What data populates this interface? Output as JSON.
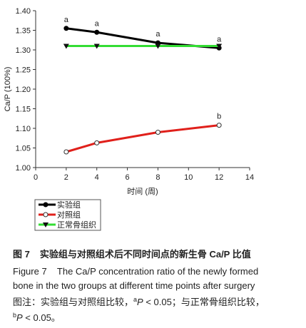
{
  "chart_data": {
    "type": "line",
    "x_label": "时间 (周)",
    "y_label": "Ca/P (100%)",
    "x": [
      2,
      4,
      8,
      12
    ],
    "series": [
      {
        "name": "实验组",
        "color": "#000000",
        "marker": "circle",
        "values": [
          1.355,
          1.345,
          1.318,
          1.305
        ],
        "annotations": [
          "a",
          "a",
          "a",
          "a"
        ]
      },
      {
        "name": "对照组",
        "color": "#e0201b",
        "marker": "open-circle",
        "values": [
          1.04,
          1.063,
          1.09,
          1.108
        ],
        "annotations": [
          null,
          null,
          null,
          "b"
        ]
      },
      {
        "name": "正常骨组织",
        "color": "#33dd33",
        "marker": "triangle",
        "values": [
          1.31,
          1.31,
          1.31,
          1.31
        ]
      }
    ],
    "xlim": [
      0,
      14
    ],
    "xticks": [
      0,
      2,
      4,
      6,
      8,
      10,
      12,
      14
    ],
    "ylim": [
      1.0,
      1.4
    ],
    "yticks": [
      {
        "value": 1.0,
        "label": "1.00"
      },
      1.05,
      {
        "value": 1.1,
        "label": "1.10"
      },
      1.15,
      {
        "value": 1.2,
        "label": "1.20"
      },
      1.25,
      {
        "value": 1.3,
        "label": "1.30"
      },
      1.35,
      {
        "value": 1.4,
        "label": "1.40"
      }
    ],
    "grid": false,
    "legend": "bottom-left"
  },
  "caption": {
    "label": "图 7",
    "title": "实验组与对照组术后不同时间点的新生骨 Ca/P 比值",
    "english": [
      "Figure 7    The Ca/P concentration ratio of the newly formed",
      "bone in the two groups at different time points after surgery"
    ],
    "note": [
      "图注：实验组与对照组比较，",
      "a",
      "P",
      " < 0.05；与正常骨组织比较，",
      "b",
      "P",
      " < 0.05。"
    ]
  }
}
